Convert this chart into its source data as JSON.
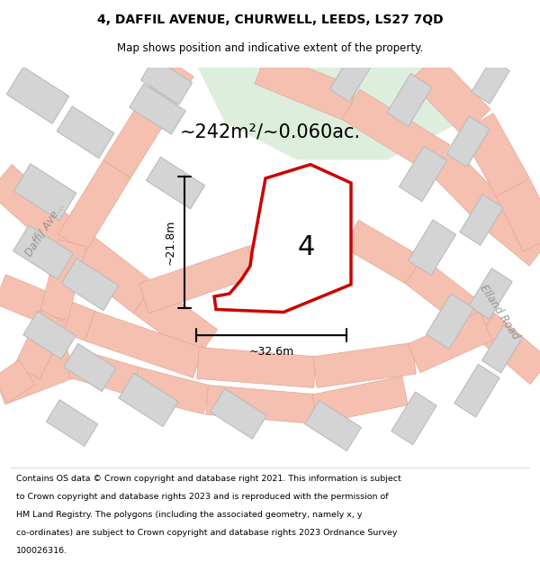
{
  "title_line1": "4, DAFFIL AVENUE, CHURWELL, LEEDS, LS27 7QD",
  "title_line2": "Map shows position and indicative extent of the property.",
  "footer_lines": [
    "Contains OS data © Crown copyright and database right 2021. This information is subject",
    "to Crown copyright and database rights 2023 and is reproduced with the permission of",
    "HM Land Registry. The polygons (including the associated geometry, namely x, y",
    "co-ordinates) are subject to Crown copyright and database rights 2023 Ordnance Survey",
    "100026316."
  ],
  "area_label": "~242m²/~0.060ac.",
  "number_label": "4",
  "dim_width": "~32.6m",
  "dim_height": "~21.8m",
  "road_label_left": "Daffi/ Ave...",
  "road_label_right": "Elland Road",
  "map_bg": "#f2f2f2",
  "green_bg": "#ddeedd",
  "property_fill": "#ffffff",
  "property_edge": "#cc0000",
  "building_fill": "#d4d4d4",
  "building_edge": "#bbbbbb",
  "road_color": "#f5c0b0",
  "road_edge": "#e0a898",
  "dim_color": "#000000",
  "label_color": "#888888",
  "title_fontsize": 10,
  "subtitle_fontsize": 8.5,
  "area_fontsize": 15,
  "number_fontsize": 22,
  "dim_fontsize": 9,
  "footer_fontsize": 6.8
}
